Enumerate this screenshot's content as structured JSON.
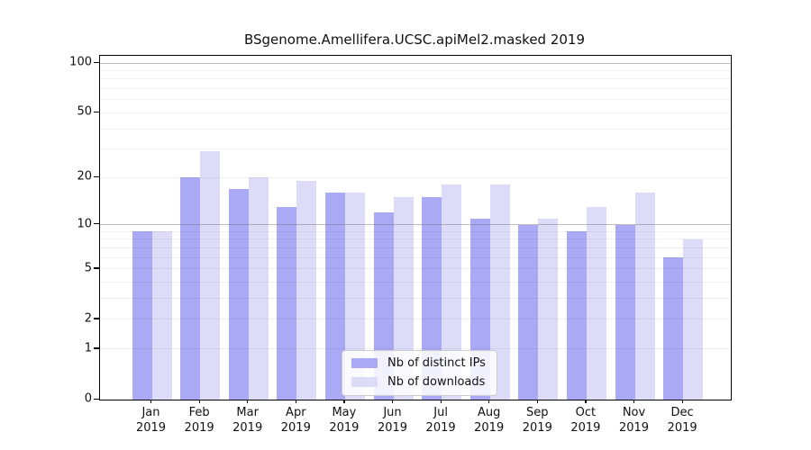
{
  "title": "BSgenome.Amellifera.UCSC.apiMel2.masked 2019",
  "colors": {
    "distinct_ips_bar": "#a9a9f5",
    "downloads_bar": "#dcdcf9",
    "axis": "#000000",
    "grid_minor": "#ededed",
    "grid_major": "#c4c4c4",
    "background": "#ffffff"
  },
  "chart_data": {
    "type": "bar",
    "title": "BSgenome.Amellifera.UCSC.apiMel2.masked 2019",
    "xlabel": "",
    "ylabel": "",
    "scale": "log1p",
    "grid": "horizontal log gridlines, minors at 1-9 and 10-90, majors at 10 and 100",
    "legend_position": "inside bottom-center",
    "categories": [
      "Jan",
      "Feb",
      "Mar",
      "Apr",
      "May",
      "Jun",
      "Jul",
      "Aug",
      "Sep",
      "Oct",
      "Nov",
      "Dec"
    ],
    "x_year_label": "2019",
    "yticks": [
      0,
      1,
      2,
      5,
      10,
      20,
      50,
      100
    ],
    "ylim": [
      0,
      110.5
    ],
    "series": [
      {
        "name": "Nb of distinct IPs",
        "color": "#a9a9f5",
        "values": [
          9,
          20,
          17,
          13,
          16,
          12,
          15,
          11,
          10,
          9,
          10,
          6
        ]
      },
      {
        "name": "Nb of downloads",
        "color": "#dcdcf9",
        "values": [
          9,
          29,
          20,
          19,
          16,
          15,
          18,
          18,
          11,
          13,
          16,
          8
        ]
      }
    ]
  },
  "legend": {
    "items": [
      {
        "label": "Nb of distinct IPs"
      },
      {
        "label": "Nb of downloads"
      }
    ]
  }
}
